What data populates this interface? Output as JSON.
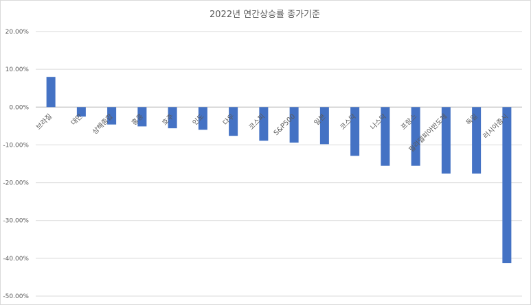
{
  "chart_data": {
    "type": "bar",
    "title": "2022년 연간상승률 종가기준",
    "xlabel": "",
    "ylabel": "",
    "ylim": [
      -50,
      20
    ],
    "yticks": [
      20,
      10,
      0,
      -10,
      -20,
      -30,
      -40,
      -50
    ],
    "ytick_labels": [
      "20.00%",
      "10.00%",
      "0.00%",
      "-10.00%",
      "-20.00%",
      "-30.00%",
      "-40.00%",
      "-50.00%"
    ],
    "grid": true,
    "legend": "none",
    "bar_color": "#4472C4",
    "categories": [
      "브라질",
      "대만",
      "상해종합",
      "홍콩",
      "호주",
      "인도",
      "다우",
      "코스피",
      "S&P500",
      "일본",
      "코스닥",
      "나스닥",
      "프랑스",
      "필라델피아반도체",
      "독일",
      "러시아증시"
    ],
    "values": [
      8.0,
      -2.5,
      -4.6,
      -5.1,
      -5.6,
      -6.0,
      -7.6,
      -8.9,
      -9.4,
      -9.8,
      -12.9,
      -15.5,
      -15.5,
      -17.6,
      -17.6,
      -41.3
    ]
  }
}
